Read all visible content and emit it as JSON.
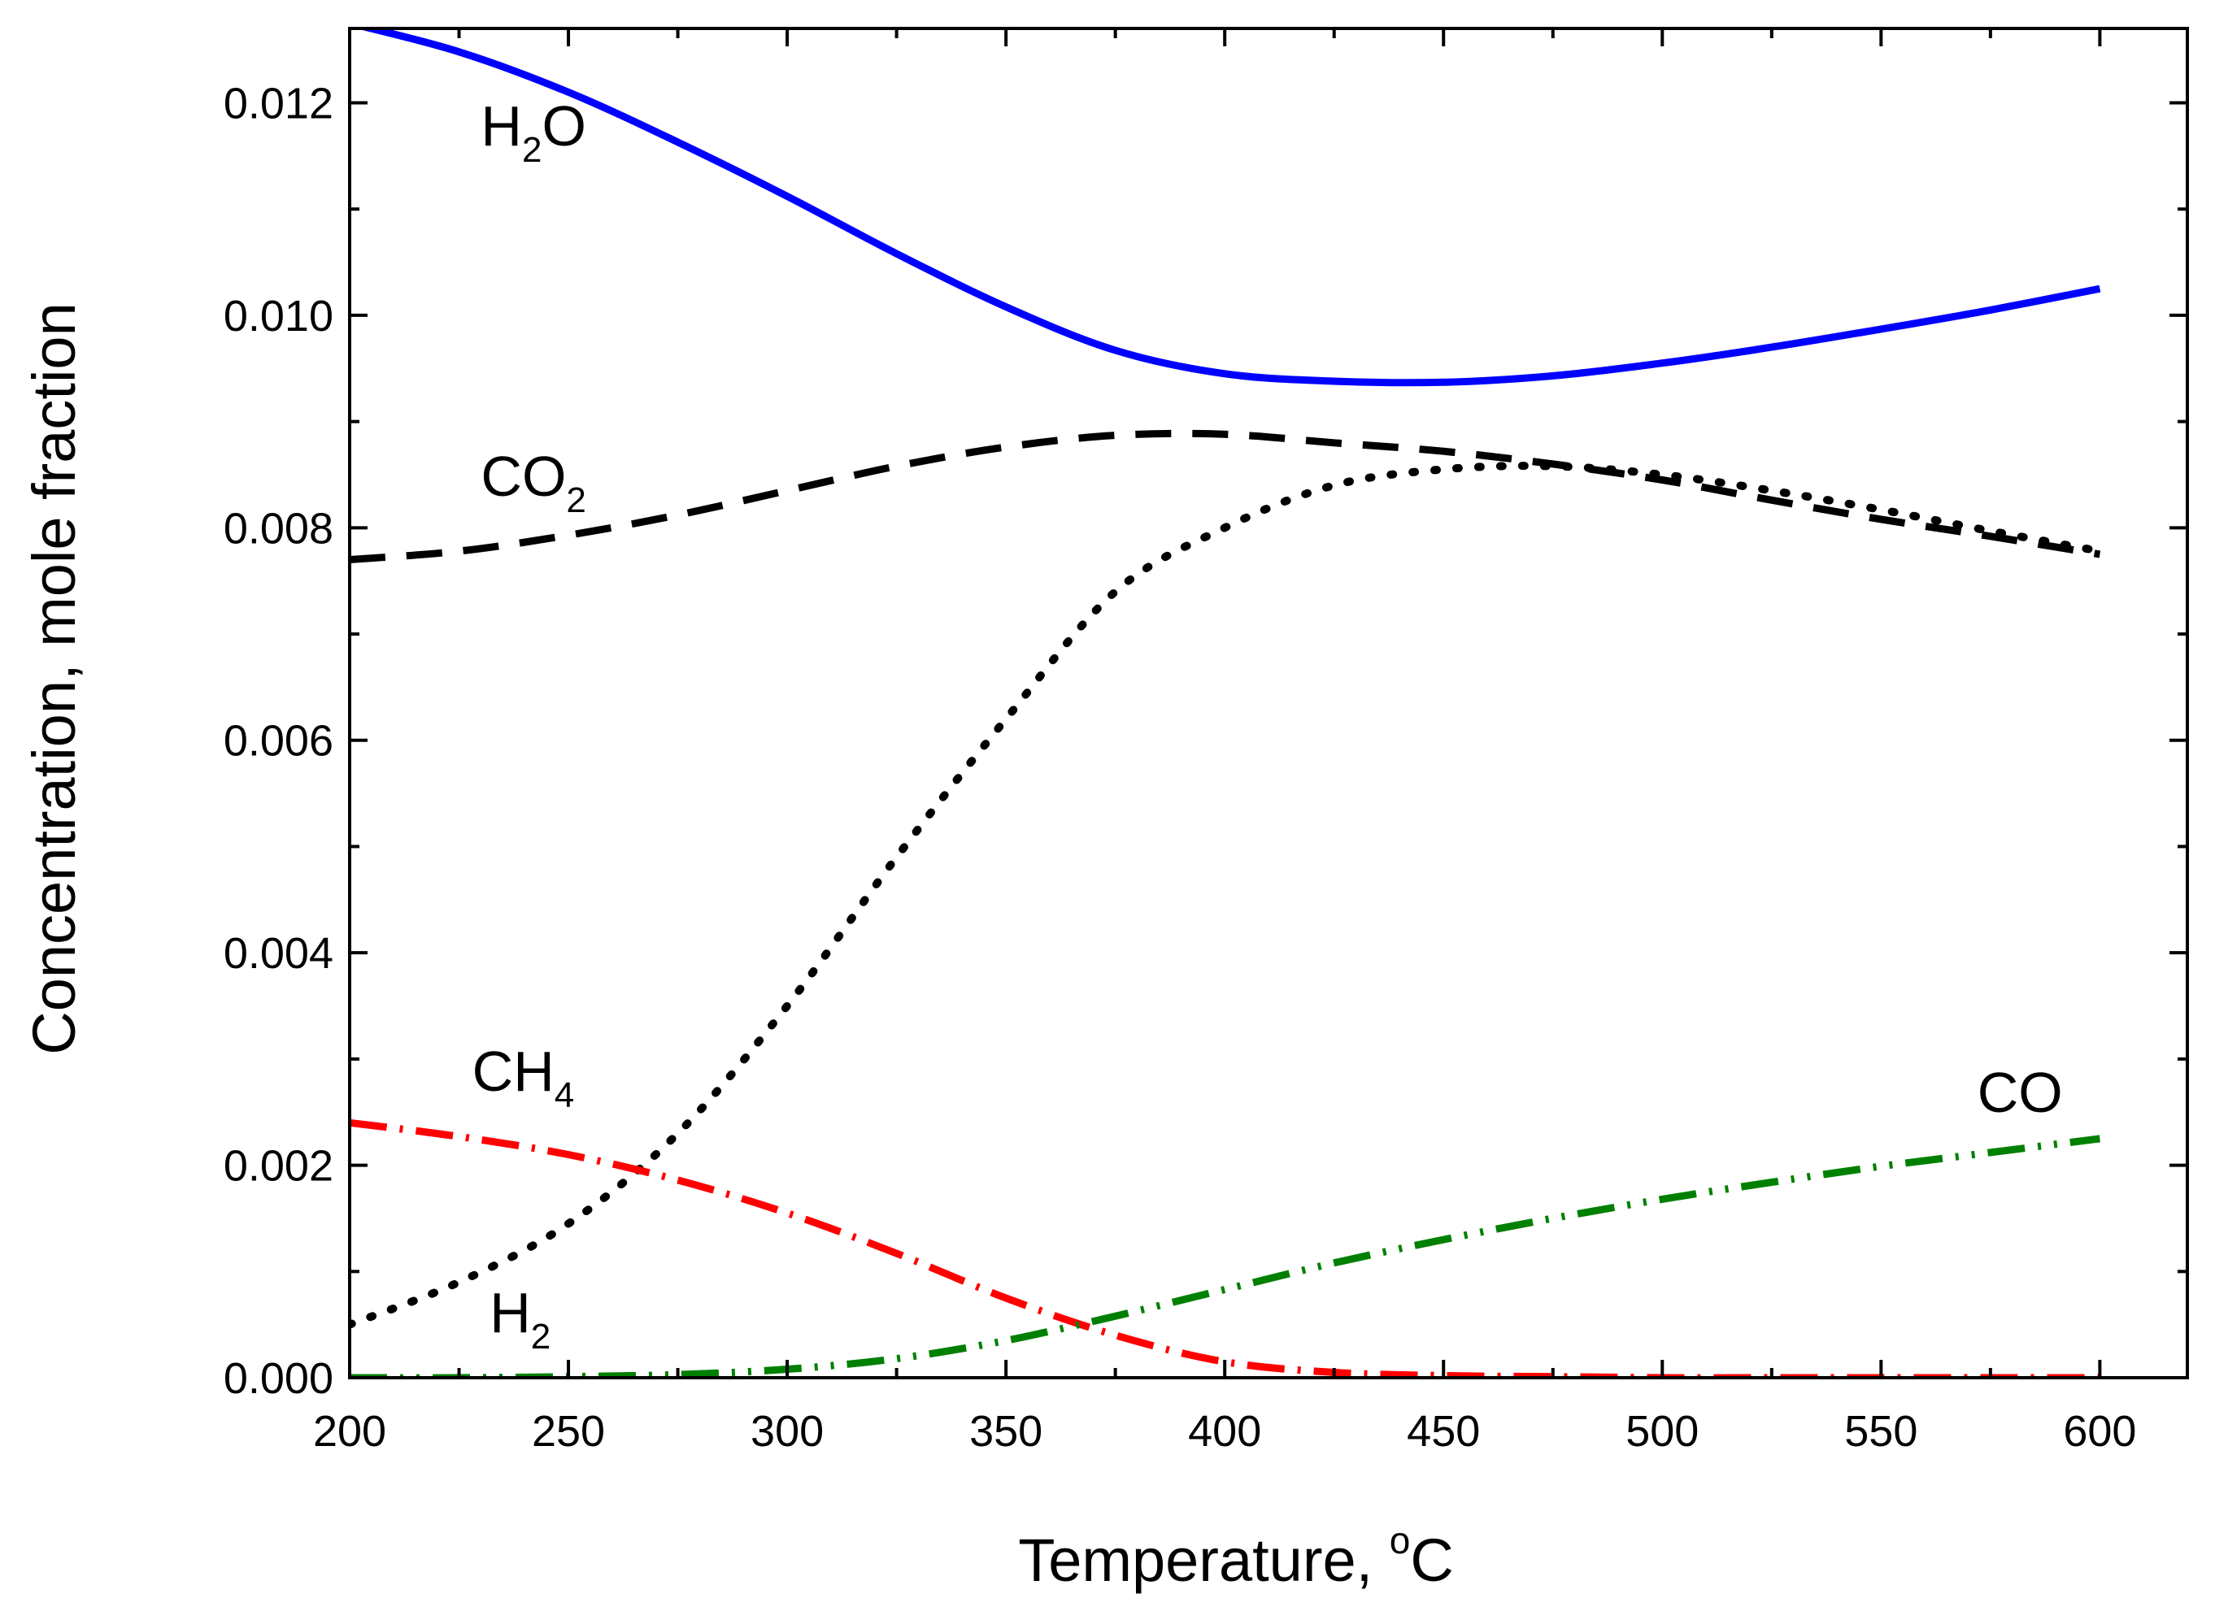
{
  "chart_data": {
    "type": "line",
    "title": "",
    "xlabel": "Temperature, ",
    "xlabel_sup": "o",
    "xlabel_unit": "C",
    "ylabel": "Concentration, mole fraction",
    "xlim": [
      200,
      620
    ],
    "ylim": [
      0,
      0.0127
    ],
    "xticks": [
      200,
      250,
      300,
      350,
      400,
      450,
      500,
      550,
      600
    ],
    "xtick_labels": [
      "200",
      "250",
      "300",
      "350",
      "400",
      "450",
      "500",
      "550",
      "600"
    ],
    "yticks": [
      0.0,
      0.002,
      0.004,
      0.006,
      0.008,
      0.01,
      0.012
    ],
    "ytick_labels": [
      "0.000",
      "0.002",
      "0.004",
      "0.006",
      "0.008",
      "0.010",
      "0.012"
    ],
    "grid": false,
    "x": [
      200,
      225,
      250,
      275,
      300,
      325,
      350,
      375,
      400,
      425,
      450,
      475,
      500,
      525,
      550,
      575,
      600
    ],
    "series": [
      {
        "name": "H2O",
        "label_main": "H",
        "label_sub": "2",
        "label_tail": "O",
        "color": "#0000ff",
        "style": "solid",
        "values": [
          0.01275,
          0.01248,
          0.0121,
          0.01163,
          0.01112,
          0.01058,
          0.01008,
          0.00967,
          0.00945,
          0.00938,
          0.00937,
          0.00943,
          0.00955,
          0.0097,
          0.00987,
          0.01005,
          0.01025
        ]
      },
      {
        "name": "CO2",
        "label_main": "CO",
        "label_sub": "2",
        "label_tail": "",
        "color": "#000000",
        "style": "dash",
        "values": [
          0.0077,
          0.00778,
          0.00793,
          0.00812,
          0.00835,
          0.00858,
          0.00876,
          0.00887,
          0.00888,
          0.0088,
          0.00872,
          0.0086,
          0.00845,
          0.00826,
          0.00808,
          0.00792,
          0.00775
        ]
      },
      {
        "name": "H2",
        "label_main": "H",
        "label_sub": "2",
        "label_tail": "",
        "color": "#000000",
        "style": "dot",
        "values": [
          0.0005,
          0.0009,
          0.00145,
          0.0023,
          0.0035,
          0.0049,
          0.0062,
          0.0074,
          0.008,
          0.0084,
          0.00855,
          0.00858,
          0.0085,
          0.00835,
          0.00817,
          0.00797,
          0.00778
        ]
      },
      {
        "name": "CH4",
        "label_main": "CH",
        "label_sub": "4",
        "label_tail": "",
        "color": "#ff0000",
        "style": "dashdot",
        "values": [
          0.0024,
          0.00227,
          0.0021,
          0.00186,
          0.00155,
          0.00117,
          0.00075,
          0.0004,
          0.00015,
          5e-05,
          2e-05,
          1e-05,
          0.0,
          0.0,
          0.0,
          0.0,
          0.0
        ]
      },
      {
        "name": "CO",
        "label_main": "CO",
        "label_sub": "",
        "label_tail": "",
        "color": "#008000",
        "style": "dashdotdot",
        "values": [
          0.0,
          0.0,
          1e-05,
          3e-05,
          8e-05,
          0.00018,
          0.00035,
          0.00058,
          0.00083,
          0.00108,
          0.0013,
          0.0015,
          0.00168,
          0.00184,
          0.00199,
          0.00212,
          0.00225
        ]
      }
    ]
  }
}
